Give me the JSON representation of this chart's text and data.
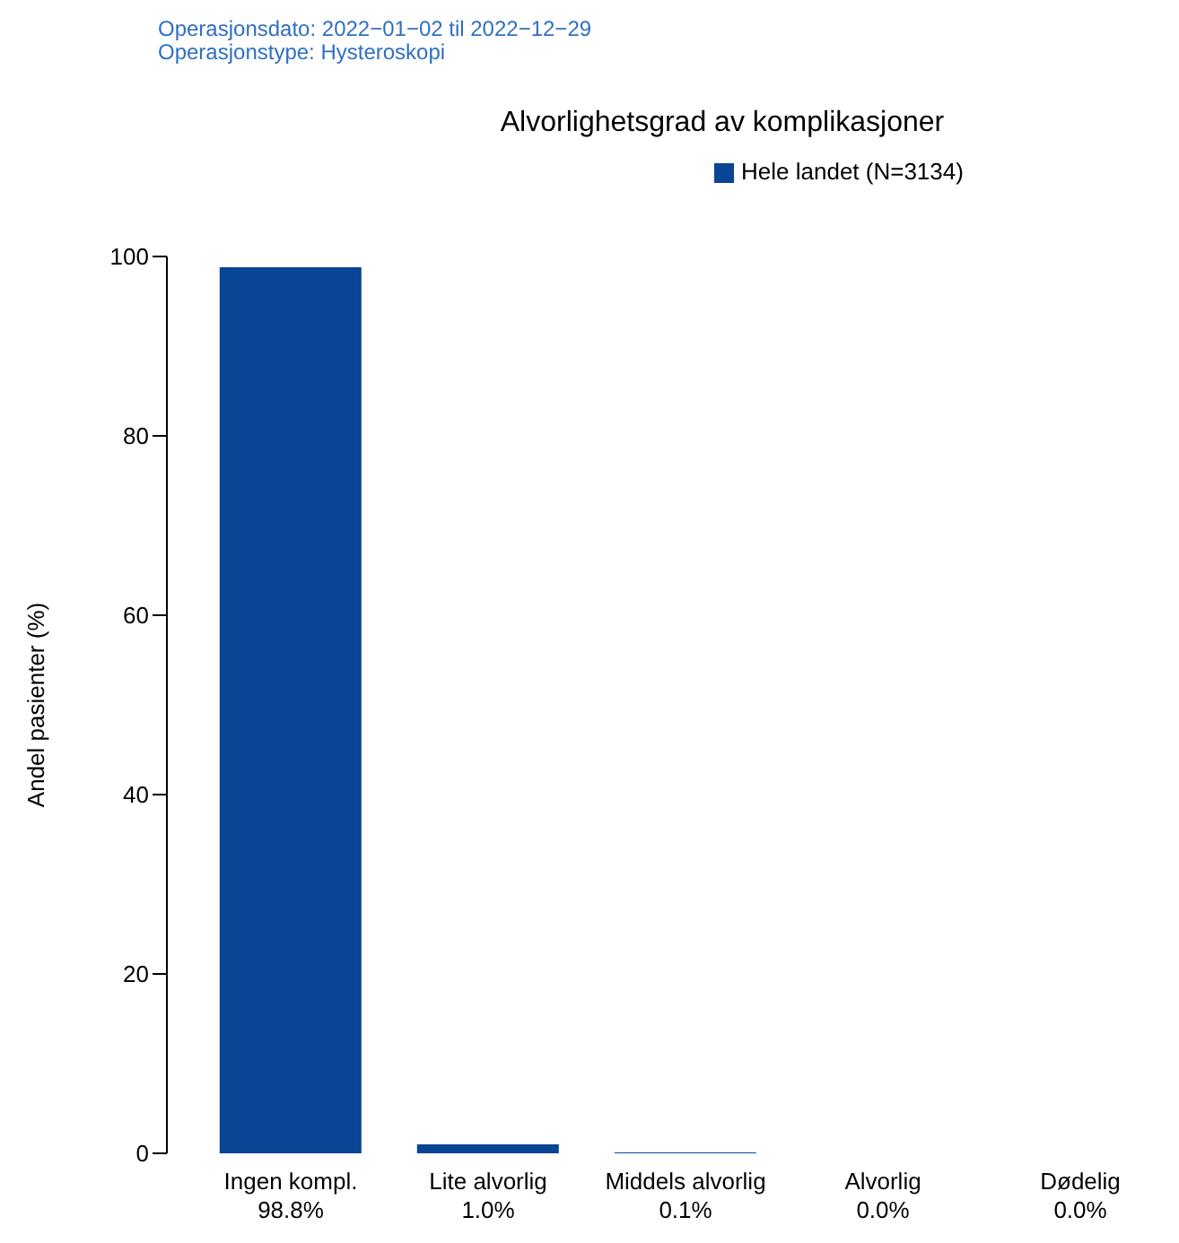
{
  "chart_data": {
    "type": "bar",
    "title": "Alvorlighetsgrad av komplikasjoner",
    "annotations": [
      "Operasjonsdato: 2022−01−02 til 2022−12−29",
      "Operasjonstype: Hysteroskopi"
    ],
    "ylabel": "Andel pasienter (%)",
    "categories": [
      "Ingen kompl.",
      "Lite alvorlig",
      "Middels alvorlig",
      "Alvorlig",
      "Dødelig"
    ],
    "series": [
      {
        "name": "Hele landet (N=3134)",
        "color": "#084594",
        "values": [
          98.8,
          1.0,
          0.1,
          0.0,
          0.0
        ],
        "value_labels": [
          "98.8%",
          "1.0%",
          "0.1%",
          "0.0%",
          "0.0%"
        ]
      }
    ],
    "ylim": [
      0,
      100
    ],
    "yticks": [
      0,
      20,
      40,
      60,
      80,
      100
    ],
    "grid": false,
    "legend": "top"
  }
}
